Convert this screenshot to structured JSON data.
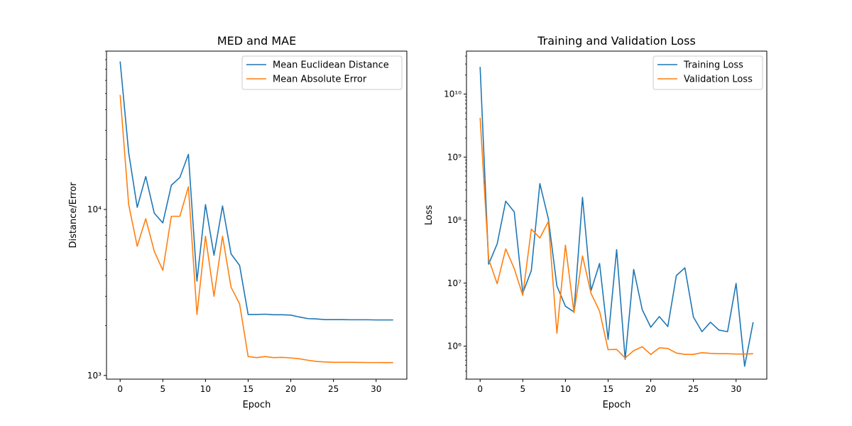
{
  "chart_data": [
    {
      "type": "line",
      "title": "MED and MAE",
      "xlabel": "Epoch",
      "ylabel": "Distance/Error",
      "yscale": "log",
      "xlim": [
        -1.6,
        33.6
      ],
      "ylim": [
        950,
        90000
      ],
      "xticks": [
        0,
        5,
        10,
        15,
        20,
        25,
        30
      ],
      "xtick_labels": [
        "0",
        "5",
        "10",
        "15",
        "20",
        "25",
        "30"
      ],
      "yticks": [
        1000,
        10000
      ],
      "ytick_labels": [
        "10³",
        "10⁴"
      ],
      "legend_position": "upper right",
      "grid": false,
      "x": [
        0,
        1,
        2,
        3,
        4,
        5,
        6,
        7,
        8,
        9,
        10,
        11,
        12,
        13,
        14,
        15,
        16,
        17,
        18,
        19,
        20,
        21,
        22,
        23,
        24,
        25,
        26,
        27,
        28,
        29,
        30,
        31,
        32
      ],
      "series": [
        {
          "name": "Mean Euclidean Distance",
          "color": "#1f77b4",
          "values": [
            78000,
            22000,
            10300,
            15800,
            9500,
            8300,
            14000,
            15600,
            21500,
            3700,
            10700,
            5300,
            10500,
            5400,
            4600,
            2330,
            2330,
            2340,
            2320,
            2320,
            2310,
            2250,
            2200,
            2190,
            2170,
            2170,
            2170,
            2165,
            2165,
            2165,
            2160,
            2160,
            2160
          ]
        },
        {
          "name": "Mean Absolute Error",
          "color": "#ff7f0e",
          "values": [
            49000,
            10700,
            6000,
            8800,
            5600,
            4300,
            9100,
            9100,
            13700,
            2330,
            6900,
            3000,
            6900,
            3400,
            2700,
            1300,
            1280,
            1300,
            1280,
            1285,
            1275,
            1260,
            1235,
            1215,
            1205,
            1200,
            1200,
            1200,
            1198,
            1196,
            1196,
            1195,
            1195
          ]
        }
      ]
    },
    {
      "type": "line",
      "title": "Training and Validation Loss",
      "xlabel": "Epoch",
      "ylabel": "Loss",
      "yscale": "log",
      "xlim": [
        -1.6,
        33.6
      ],
      "ylim": [
        300000,
        48000000000
      ],
      "xticks": [
        0,
        5,
        10,
        15,
        20,
        25,
        30
      ],
      "xtick_labels": [
        "0",
        "5",
        "10",
        "15",
        "20",
        "25",
        "30"
      ],
      "yticks": [
        1000000,
        10000000,
        100000000,
        1000000000,
        10000000000
      ],
      "ytick_labels": [
        "10⁶",
        "10⁷",
        "10⁸",
        "10⁹",
        "10¹⁰"
      ],
      "legend_position": "upper right",
      "grid": false,
      "x": [
        0,
        1,
        2,
        3,
        4,
        5,
        6,
        7,
        8,
        9,
        10,
        11,
        12,
        13,
        14,
        15,
        16,
        17,
        18,
        19,
        20,
        21,
        22,
        23,
        24,
        25,
        26,
        27,
        28,
        29,
        30,
        31,
        32
      ],
      "series": [
        {
          "name": "Training Loss",
          "color": "#1f77b4",
          "values": [
            27000000000,
            20000000,
            42000000,
            200000000,
            135000000,
            7000000,
            15800000,
            380000000,
            105000000,
            9000000,
            4300000,
            3500000,
            230000000,
            7600000,
            20500000,
            1280000,
            34000000,
            620000,
            16500000,
            3800000,
            2000000,
            2950000,
            2050000,
            13200000,
            17500000,
            2900000,
            1700000,
            2400000,
            1800000,
            1700000,
            9900000,
            480000,
            2400000
          ]
        },
        {
          "name": "Validation Loss",
          "color": "#ff7f0e",
          "values": [
            4200000000,
            24000000,
            9800000,
            35000000,
            17000000,
            6400000,
            72000000,
            52000000,
            95000000,
            1600000,
            40000000,
            3400000,
            27000000,
            6900000,
            3600000,
            880000,
            890000,
            650000,
            850000,
            980000,
            740000,
            940000,
            920000,
            780000,
            740000,
            740000,
            790000,
            770000,
            760000,
            760000,
            750000,
            750000,
            760000
          ]
        }
      ]
    }
  ]
}
